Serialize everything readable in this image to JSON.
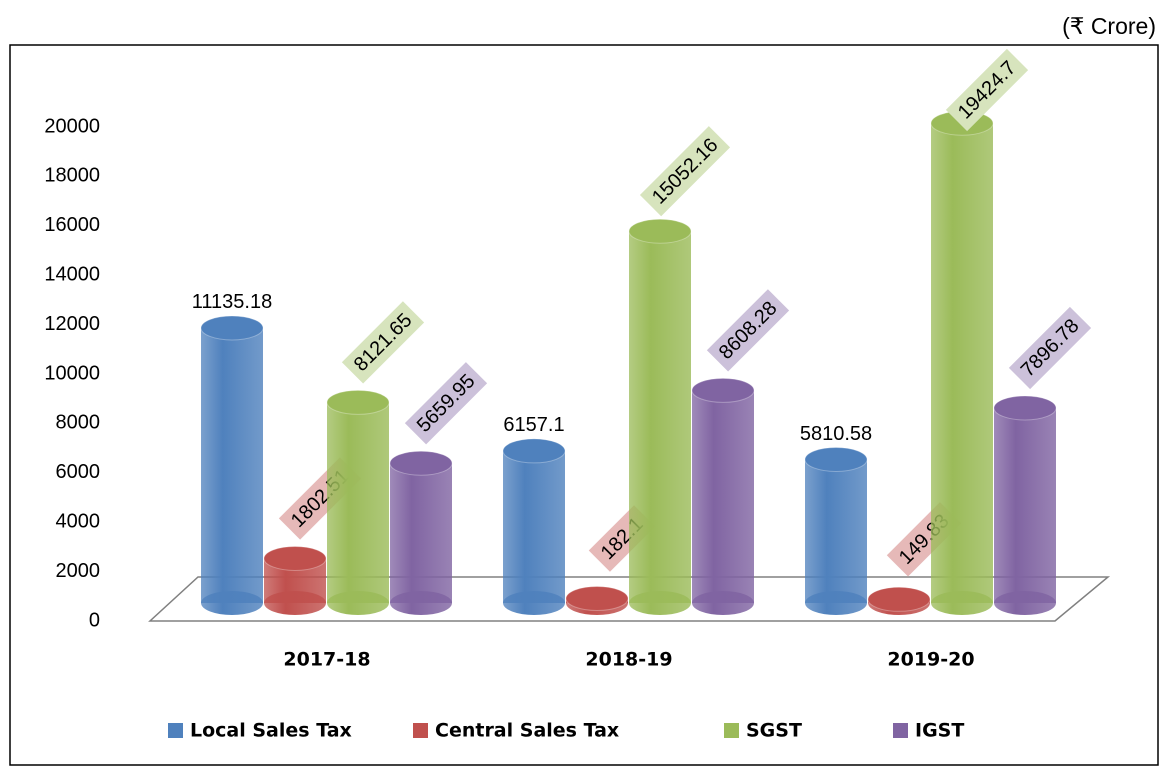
{
  "chart_data": {
    "type": "bar3d",
    "y_unit": "(₹ Crore)",
    "categories": [
      "2017-18",
      "2018-19",
      "2019-20"
    ],
    "series": [
      {
        "name": "Local Sales Tax",
        "color": "#4f81bd",
        "values": [
          11135.18,
          6157.1,
          5810.58
        ]
      },
      {
        "name": "Central Sales Tax",
        "color": "#c0504d",
        "label_bg": "#e6b9b8",
        "values": [
          1802.51,
          182.1,
          149.83
        ]
      },
      {
        "name": "SGST",
        "color": "#9bbb59",
        "label_bg": "#d7e4bd",
        "values": [
          8121.65,
          15052.16,
          19424.7
        ]
      },
      {
        "name": "IGST",
        "color": "#8064a2",
        "label_bg": "#ccc1da",
        "values": [
          5659.95,
          8608.28,
          7896.78
        ]
      }
    ],
    "ylim": [
      0,
      20000
    ],
    "yticks": [
      0,
      2000,
      4000,
      6000,
      8000,
      10000,
      12000,
      14000,
      16000,
      18000,
      20000
    ],
    "legend": "bottom"
  }
}
